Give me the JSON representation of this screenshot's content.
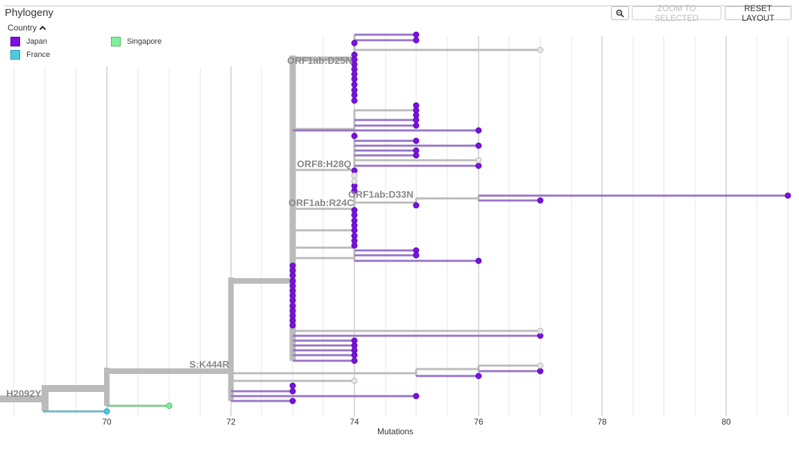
{
  "panel": {
    "title": "Phylogeny",
    "legend_title": "Country",
    "legend": [
      {
        "label": "Japan",
        "color": "#7a11e0",
        "border": "#5a0cb0"
      },
      {
        "label": "Singapore",
        "color": "#7ef09a",
        "border": "#4cbb6a"
      },
      {
        "label": "France",
        "color": "#4fc9dd",
        "border": "#2f99ad"
      }
    ]
  },
  "toolbar": {
    "zoom_icon": "magnifier-icon",
    "zoom_selected_label": "ZOOM TO SELECTED",
    "reset_label": "RESET LAYOUT"
  },
  "axis": {
    "label": "Mutations",
    "ticks": [
      "70",
      "72",
      "74",
      "76",
      "78",
      "80"
    ]
  },
  "colors": {
    "branch_gray": "#bbbbbb",
    "japan": "#7a11e0",
    "japan_branch": "#9875c8",
    "singapore": "#7ef09a",
    "singapore_branch": "#7dcb8c",
    "france": "#4fc9dd",
    "france_branch": "#6fb7c9",
    "unknown_tip": "#e6e6e6"
  },
  "mutations": [
    "H2092Y",
    "S:K444R",
    "ORF1ab:D25N",
    "ORF8:H28Q",
    "ORF1ab:R24C",
    "ORF1ab:D33N"
  ]
}
